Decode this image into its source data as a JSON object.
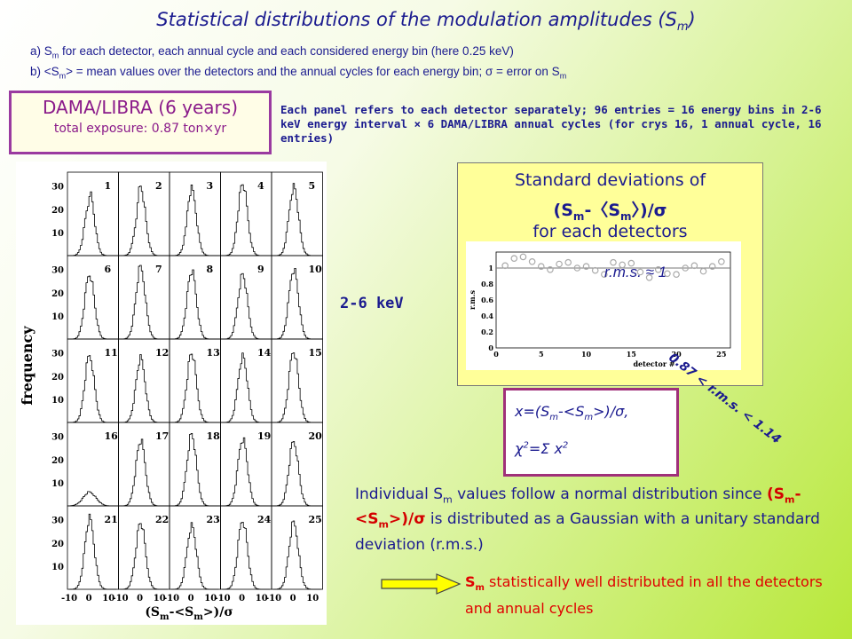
{
  "title": {
    "prefix": "Statistical distributions of the modulation amplitudes (S",
    "sub": "m",
    "suffix": ")"
  },
  "notes": {
    "a": {
      "p1": "a) S",
      "s1": "m",
      "p2": " for each detector, each annual cycle and each considered energy bin (here 0.25 keV)"
    },
    "b": {
      "p1": "b) <S",
      "s1": "m",
      "p2": "> = mean values over the detectors and the annual cycles for each energy bin;  σ = error on S",
      "s2": "m"
    }
  },
  "dama_box": {
    "title": "DAMA/LIBRA (6 years)",
    "subtitle": "total exposure: 0.87 ton×yr"
  },
  "panel_description": "Each panel refers to each detector separately; 96 entries = 16 energy bins in 2-6 keV energy interval × 6 DAMA/LIBRA annual cycles (for crys 16, 1 annual cycle, 16 entries)",
  "histogram_grid": {
    "ylabel": "frequency",
    "xlabel_parts": {
      "a": "(S",
      "b": "m",
      "c": "-<S",
      "d": "m",
      "e": ">)/σ"
    },
    "yticks": [
      "30",
      "20",
      "10"
    ],
    "xticks": [
      "-10",
      "0",
      "10"
    ],
    "panels": [
      "1",
      "2",
      "3",
      "4",
      "5",
      "6",
      "7",
      "8",
      "9",
      "10",
      "11",
      "12",
      "13",
      "14",
      "15",
      "16",
      "17",
      "18",
      "19",
      "20",
      "21",
      "22",
      "23",
      "24",
      "25"
    ]
  },
  "energy_label": "2-6 keV",
  "std_box": {
    "line1": "Standard deviations of",
    "line2": "(S",
    "line2_sub1": "m",
    "line2_mid": "-〈S",
    "line2_sub2": "m",
    "line2_end": "〉)/σ",
    "line3": "for each detectors"
  },
  "chart_data": {
    "type": "scatter",
    "title": "",
    "xlabel": "detector #",
    "ylabel": "r.m.s",
    "xlim": [
      0,
      26
    ],
    "ylim": [
      0,
      1.2
    ],
    "xticks": [
      "0",
      "5",
      "10",
      "15",
      "20",
      "25"
    ],
    "yticks": [
      "0",
      "0.2",
      "0.4",
      "0.6",
      "0.8",
      "1"
    ],
    "annotation": "r.m.s. ≈ 1",
    "x": [
      1,
      2,
      3,
      4,
      5,
      6,
      7,
      8,
      9,
      10,
      11,
      12,
      13,
      14,
      15,
      16,
      17,
      18,
      19,
      20,
      21,
      22,
      23,
      24,
      25
    ],
    "y": [
      1.03,
      1.12,
      1.14,
      1.08,
      1.02,
      0.98,
      1.05,
      1.07,
      1.0,
      1.02,
      0.97,
      0.92,
      1.07,
      1.04,
      1.06,
      0.95,
      0.88,
      0.98,
      0.93,
      0.92,
      1.0,
      1.03,
      0.96,
      1.02,
      1.08
    ]
  },
  "range_label": "0.87 < r.m.s. < 1.14",
  "formula": {
    "l1a": "x=(S",
    "l1b": "m",
    "l1c": "-<S",
    "l1d": "m",
    "l1e": ">)/σ,",
    "l2a": "χ",
    "l2b": "2",
    "l2c": "=Σ x",
    "l2d": "2"
  },
  "individual": {
    "p1": "Individual S",
    "s1": "m",
    "p2": " values follow a normal distribution since ",
    "red1": "(S",
    "rs1": "m",
    "red2": "-<S",
    "rs2": "m",
    "red3": ">)/σ",
    "p3": "  is distributed as a Gaussian with a unitary standard deviation (r.m.s.)"
  },
  "conclusion": {
    "a": "S",
    "b": "m",
    "c": " statistically well distributed in all the detectors and annual cycles"
  },
  "colors": {
    "title": "#1b1b8f",
    "accent_red": "#e00000",
    "box_purple": "#9a3aa0",
    "box_yellow": "#ffff99"
  }
}
